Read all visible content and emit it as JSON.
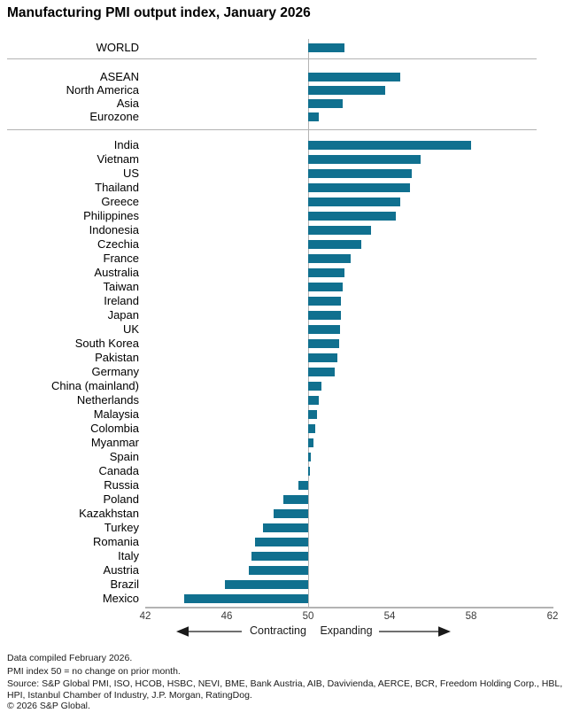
{
  "title": "Manufacturing PMI output index, January 2026",
  "colors": {
    "bar": "#10708f",
    "grid": "#b3b3b3",
    "arrow": "#1a1a1a"
  },
  "chart_data": {
    "type": "bar",
    "orientation": "horizontal",
    "baseline": 50,
    "xlim": [
      42,
      62
    ],
    "x_ticks": [
      "42",
      "46",
      "50",
      "54",
      "58",
      "62"
    ],
    "legend": "none",
    "grid": "off",
    "annotations": {
      "left_arrow_label": "Contracting",
      "right_arrow_label": "Expanding"
    },
    "groups": [
      {
        "name": "world",
        "rows": [
          {
            "label": "WORLD",
            "value": 51.8
          }
        ]
      },
      {
        "name": "regions",
        "rows": [
          {
            "label": "ASEAN",
            "value": 54.5
          },
          {
            "label": "North America",
            "value": 53.8
          },
          {
            "label": "Asia",
            "value": 51.7
          },
          {
            "label": "Eurozone",
            "value": 50.5
          }
        ]
      },
      {
        "name": "countries",
        "rows": [
          {
            "label": "India",
            "value": 58.0
          },
          {
            "label": "Vietnam",
            "value": 55.5
          },
          {
            "label": "US",
            "value": 55.1
          },
          {
            "label": "Thailand",
            "value": 55.0
          },
          {
            "label": "Greece",
            "value": 54.5
          },
          {
            "label": "Philippines",
            "value": 54.3
          },
          {
            "label": "Indonesia",
            "value": 53.1
          },
          {
            "label": "Czechia",
            "value": 52.6
          },
          {
            "label": "France",
            "value": 52.1
          },
          {
            "label": "Australia",
            "value": 51.8
          },
          {
            "label": "Taiwan",
            "value": 51.7
          },
          {
            "label": "Ireland",
            "value": 51.6
          },
          {
            "label": "Japan",
            "value": 51.6
          },
          {
            "label": "UK",
            "value": 51.55
          },
          {
            "label": "South Korea",
            "value": 51.5
          },
          {
            "label": "Pakistan",
            "value": 51.45
          },
          {
            "label": "Germany",
            "value": 51.3
          },
          {
            "label": "China (mainland)",
            "value": 50.65
          },
          {
            "label": "Netherlands",
            "value": 50.5
          },
          {
            "label": "Malaysia",
            "value": 50.45
          },
          {
            "label": "Colombia",
            "value": 50.35
          },
          {
            "label": "Myanmar",
            "value": 50.25
          },
          {
            "label": "Spain",
            "value": 50.15
          },
          {
            "label": "Canada",
            "value": 50.1
          },
          {
            "label": "Russia",
            "value": 49.5
          },
          {
            "label": "Poland",
            "value": 48.8
          },
          {
            "label": "Kazakhstan",
            "value": 48.3
          },
          {
            "label": "Turkey",
            "value": 47.8
          },
          {
            "label": "Romania",
            "value": 47.4
          },
          {
            "label": "Italy",
            "value": 47.2
          },
          {
            "label": "Austria",
            "value": 47.1
          },
          {
            "label": "Brazil",
            "value": 45.9
          },
          {
            "label": "Mexico",
            "value": 43.9
          }
        ]
      }
    ]
  },
  "footnotes": {
    "compiled": "Data compiled February 2026.",
    "note": "PMI index 50 = no change on prior month.",
    "source": "Source: S&P Global PMI, ISO, HCOB, HSBC, NEVI, BME, Bank Austria, AIB, Davivienda, AERCE, BCR, Freedom Holding Corp., HBL, HPI, Istanbul Chamber of Industry, J.P. Morgan, RatingDog.",
    "copyright": "© 2026 S&P Global."
  }
}
